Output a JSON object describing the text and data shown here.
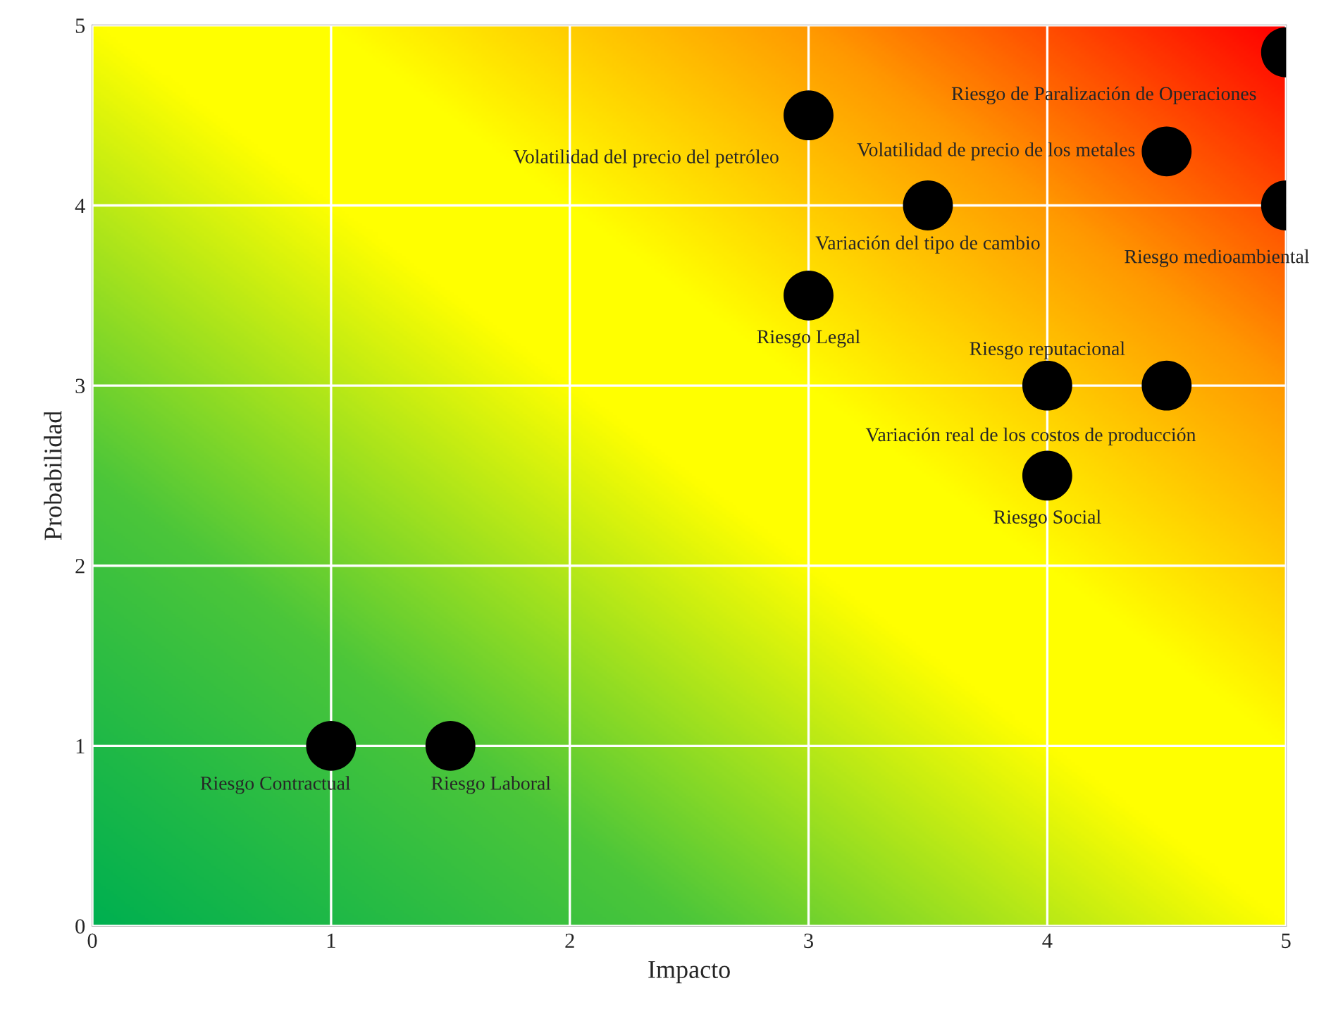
{
  "chart_data": {
    "type": "scatter",
    "xlabel": "Impacto",
    "ylabel": "Probabilidad",
    "x": [
      1,
      1.5,
      3,
      3.5,
      3,
      4,
      4.5,
      4,
      5,
      4.5,
      5
    ],
    "series": [
      {
        "color": "#000000",
        "values": [
          1,
          1,
          4.5,
          4,
          3.5,
          3,
          3,
          2.5,
          4.85,
          4.3,
          4
        ]
      }
    ],
    "marker": "circle",
    "xlim": [
      0,
      5
    ],
    "ylim": [
      0,
      5
    ],
    "xticks": [
      0,
      1,
      2,
      3,
      4,
      5
    ],
    "yticks": [
      0,
      1,
      2,
      3,
      4,
      5
    ],
    "grid": true,
    "legend": false,
    "annotations": [
      {
        "text": "Riesgo Contractual",
        "x": 1,
        "y": 1
      },
      {
        "text": "Riesgo Laboral",
        "x": 1.5,
        "y": 1
      },
      {
        "text": "Volatilidad del precio del petróleo",
        "x": 3,
        "y": 4.5
      },
      {
        "text": "Variación del tipo de cambio",
        "x": 3.5,
        "y": 4
      },
      {
        "text": "Riesgo Legal",
        "x": 3,
        "y": 3.5
      },
      {
        "text": "Riesgo reputacional",
        "x": 4,
        "y": 3
      },
      {
        "text": "Variación real de los costos de producción",
        "x": 4.5,
        "y": 3
      },
      {
        "text": "Riesgo Social",
        "x": 4,
        "y": 2.5
      },
      {
        "text": "Riesgo de Paralización de Operaciones",
        "x": 5,
        "y": 4.85
      },
      {
        "text": "Volatilidad de precio de los metales",
        "x": 4.5,
        "y": 4.3
      },
      {
        "text": "Riesgo medioambiental",
        "x": 5,
        "y": 4
      }
    ]
  }
}
